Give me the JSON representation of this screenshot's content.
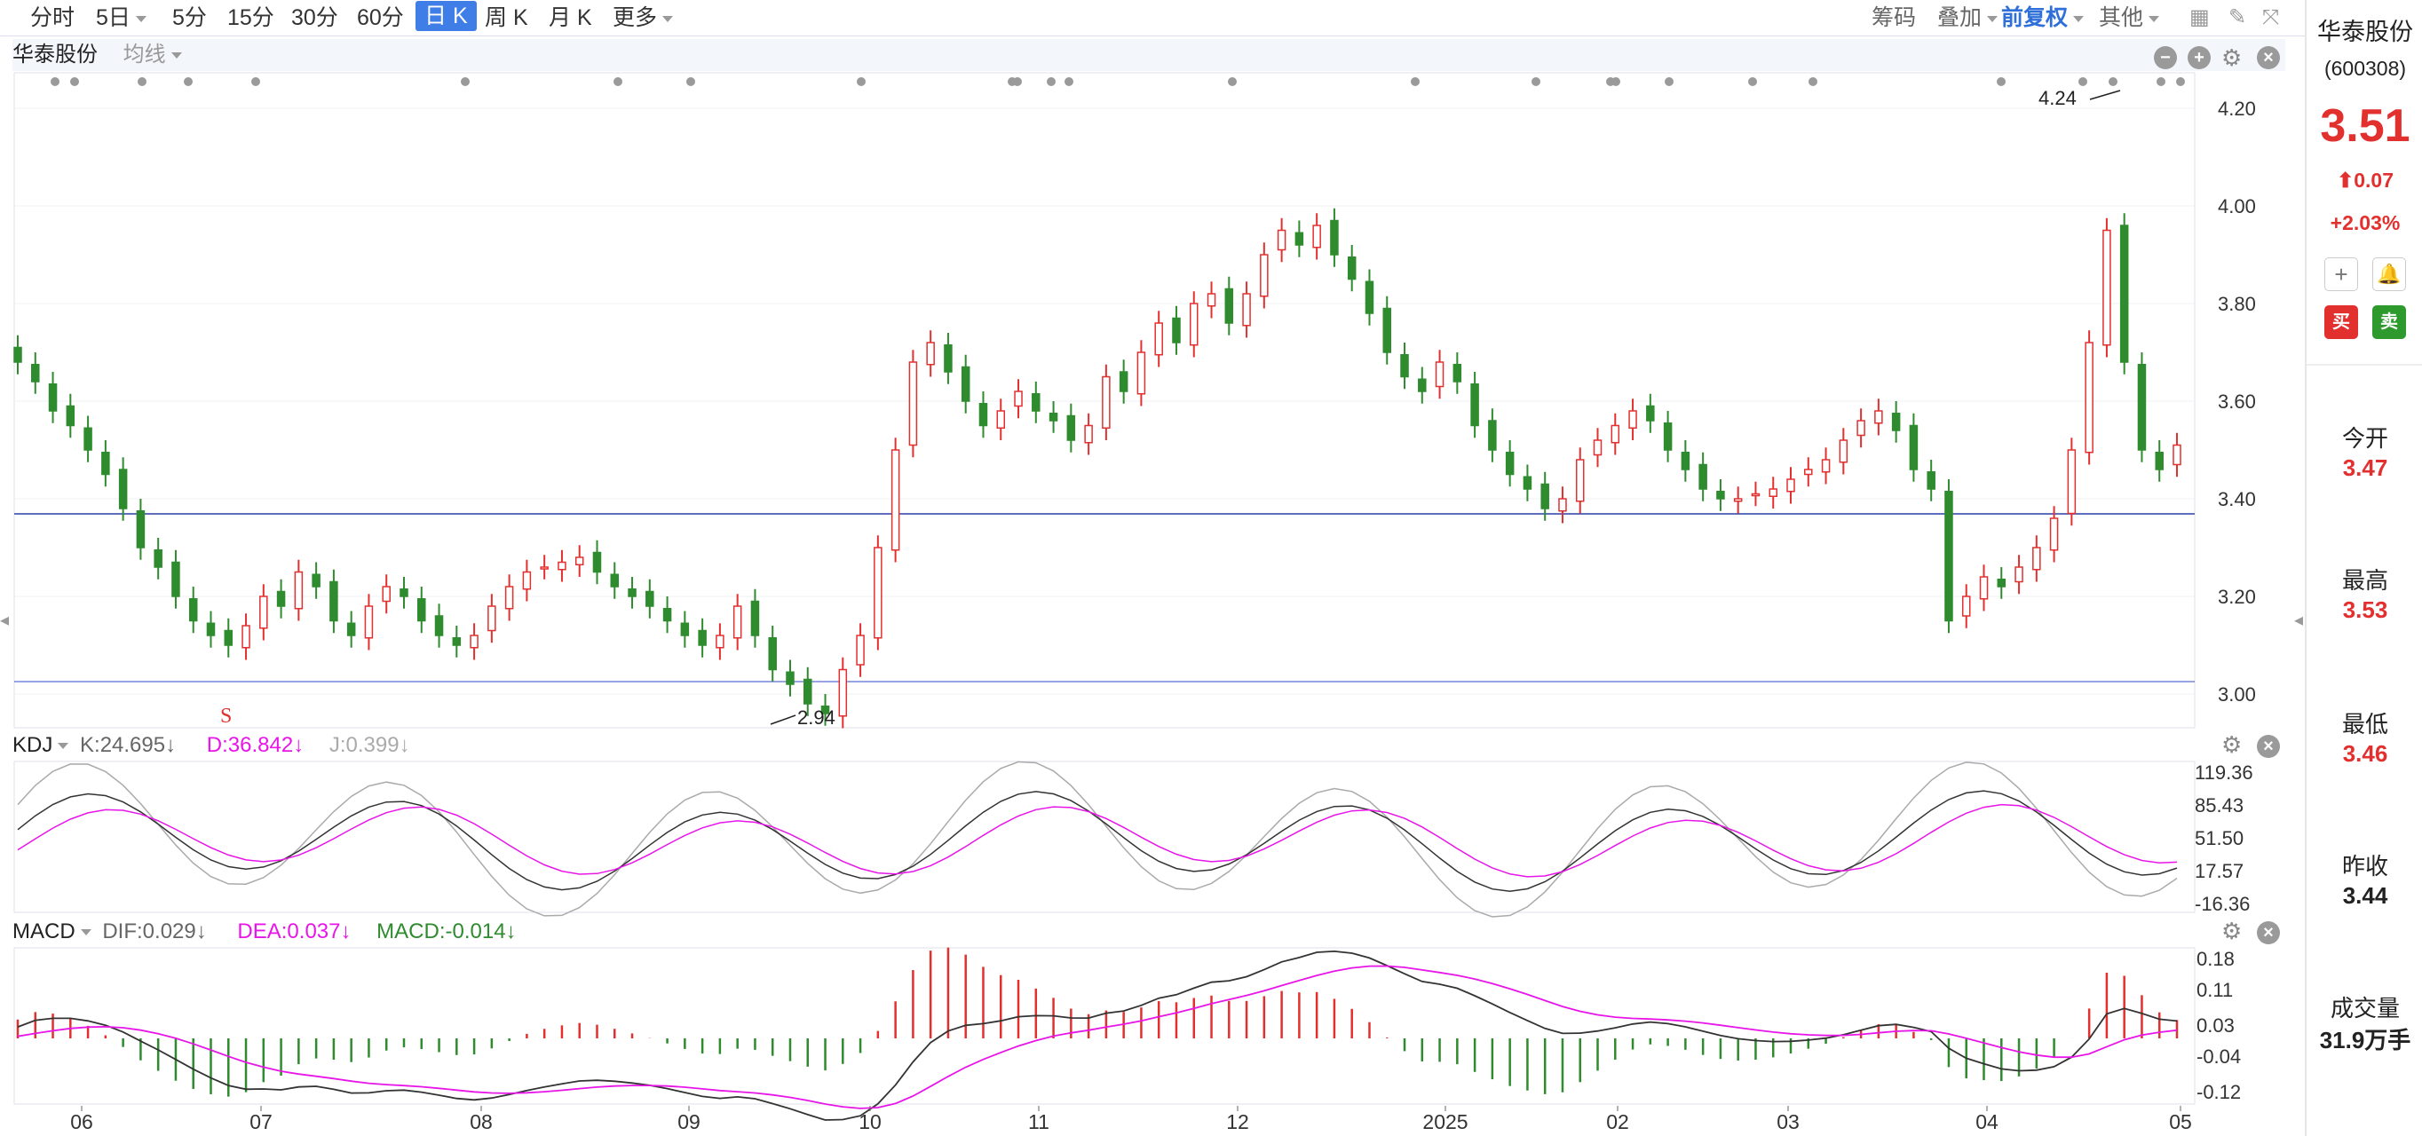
{
  "toolbar": {
    "periods": [
      "分时",
      "5日",
      "5分",
      "15分",
      "30分",
      "60分",
      "日 K",
      "周 K",
      "月 K",
      "更多"
    ],
    "active_period": "日 K",
    "right_items": {
      "chips": "筹码",
      "overlay": "叠加",
      "adjust": "前复权",
      "other": "其他"
    }
  },
  "main_panel": {
    "stock_name": "华泰股份",
    "ma_label": "均线",
    "price_axis": [
      "4.20",
      "4.00",
      "3.80",
      "3.60",
      "3.40",
      "3.20",
      "3.00"
    ],
    "high_marker": "4.24",
    "low_marker": "2.94",
    "s_marker": "S"
  },
  "kdj": {
    "label": "KDJ",
    "k": "K:24.695↓",
    "d": "D:36.842↓",
    "j": "J:0.399↓",
    "axis": [
      "119.36",
      "85.43",
      "51.50",
      "17.57",
      "-16.36"
    ]
  },
  "macd": {
    "label": "MACD",
    "dif": "DIF:0.029↓",
    "dea": "DEA:0.037↓",
    "macd": "MACD:-0.014↓",
    "axis": [
      "0.18",
      "0.11",
      "0.03",
      "-0.04",
      "-0.12"
    ]
  },
  "time_axis": [
    "06",
    "07",
    "08",
    "09",
    "10",
    "11",
    "12",
    "2025",
    "02",
    "03",
    "04",
    "05"
  ],
  "side": {
    "name": "华泰股份",
    "code": "(600308)",
    "price": "3.51",
    "change": "0.07",
    "change_pct": "+2.03%",
    "buy": "买",
    "sell": "卖",
    "open_label": "今开",
    "open": "3.47",
    "high_label": "最高",
    "high": "3.53",
    "low_label": "最低",
    "low": "3.46",
    "prev_label": "昨收",
    "prev": "3.44",
    "vol_label": "成交量",
    "vol": "31.9万手"
  },
  "colors": {
    "up": "#e2302f",
    "down": "#2e8b2e",
    "accent": "#3e7ee6",
    "dea": "#e815e8"
  },
  "chart_data": {
    "type": "candlestick",
    "price_range": [
      2.94,
      4.24
    ],
    "closes": [
      3.68,
      3.64,
      3.58,
      3.55,
      3.5,
      3.45,
      3.38,
      3.3,
      3.26,
      3.2,
      3.15,
      3.12,
      3.1,
      3.14,
      3.2,
      3.18,
      3.25,
      3.22,
      3.15,
      3.12,
      3.18,
      3.22,
      3.2,
      3.15,
      3.12,
      3.1,
      3.12,
      3.18,
      3.22,
      3.25,
      3.26,
      3.27,
      3.28,
      3.25,
      3.22,
      3.2,
      3.18,
      3.15,
      3.12,
      3.1,
      3.12,
      3.18,
      3.12,
      3.05,
      3.02,
      2.98,
      2.96,
      3.05,
      3.12,
      3.3,
      3.5,
      3.68,
      3.72,
      3.66,
      3.6,
      3.55,
      3.58,
      3.62,
      3.58,
      3.56,
      3.52,
      3.55,
      3.65,
      3.62,
      3.7,
      3.76,
      3.72,
      3.8,
      3.82,
      3.76,
      3.82,
      3.9,
      3.95,
      3.92,
      3.96,
      3.9,
      3.85,
      3.78,
      3.7,
      3.65,
      3.62,
      3.68,
      3.64,
      3.55,
      3.5,
      3.45,
      3.42,
      3.38,
      3.4,
      3.48,
      3.52,
      3.55,
      3.58,
      3.56,
      3.5,
      3.46,
      3.42,
      3.4,
      3.4,
      3.41,
      3.42,
      3.44,
      3.46,
      3.48,
      3.52,
      3.56,
      3.58,
      3.54,
      3.46,
      3.42,
      3.15,
      3.2,
      3.24,
      3.22,
      3.26,
      3.3,
      3.36,
      3.5,
      3.72,
      3.95,
      3.68,
      3.5,
      3.46,
      3.51
    ],
    "kdj_axis": [
      -16.36,
      119.36
    ],
    "macd_axis": [
      -0.12,
      0.18
    ]
  }
}
